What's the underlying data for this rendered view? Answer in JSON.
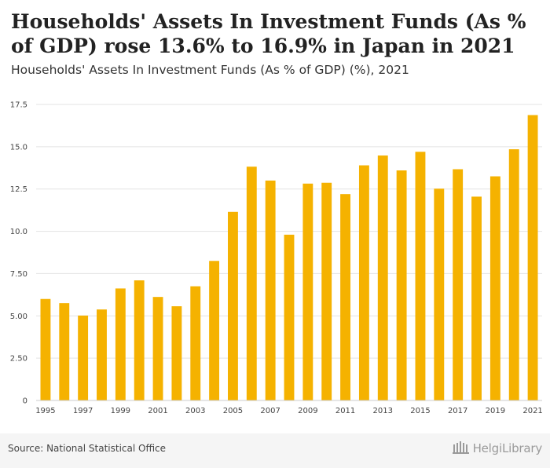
{
  "header": {
    "title": "Households' Assets In Investment Funds (As % of GDP) rose 13.6% to 16.9% in Japan in 2021",
    "subtitle": "Households' Assets In Investment Funds (As % of GDP) (%), 2021"
  },
  "footer": {
    "source": "Source: National Statistical Office",
    "logo_text": "HelgiLibrary"
  },
  "colors": {
    "bar": "#f5b200",
    "grid": "#e3e3e3"
  },
  "chart_data": {
    "type": "bar",
    "title": "Households' Assets In Investment Funds (As % of GDP) (%), 2021",
    "xlabel": "",
    "ylabel": "",
    "ylim": [
      0,
      17.5
    ],
    "grid": true,
    "yticks": [
      "0",
      "2.50",
      "5.00",
      "7.50",
      "10.0",
      "12.5",
      "15.0",
      "17.5"
    ],
    "categories": [
      "1995",
      "1996",
      "1997",
      "1998",
      "1999",
      "2000",
      "2001",
      "2002",
      "2003",
      "2004",
      "2005",
      "2006",
      "2007",
      "2008",
      "2009",
      "2010",
      "2011",
      "2012",
      "2013",
      "2014",
      "2015",
      "2016",
      "2017",
      "2018",
      "2019",
      "2020",
      "2021"
    ],
    "xtick_labels": [
      "1995",
      "1997",
      "1999",
      "2001",
      "2003",
      "2005",
      "2007",
      "2009",
      "2011",
      "2013",
      "2015",
      "2017",
      "2019",
      "2021"
    ],
    "values": [
      6.0,
      5.75,
      5.02,
      5.38,
      6.62,
      7.1,
      6.12,
      5.57,
      6.75,
      8.25,
      11.15,
      13.82,
      13.0,
      9.8,
      12.82,
      12.87,
      12.2,
      13.9,
      14.48,
      13.6,
      14.7,
      12.52,
      13.67,
      12.05,
      13.25,
      14.85,
      16.87
    ]
  }
}
